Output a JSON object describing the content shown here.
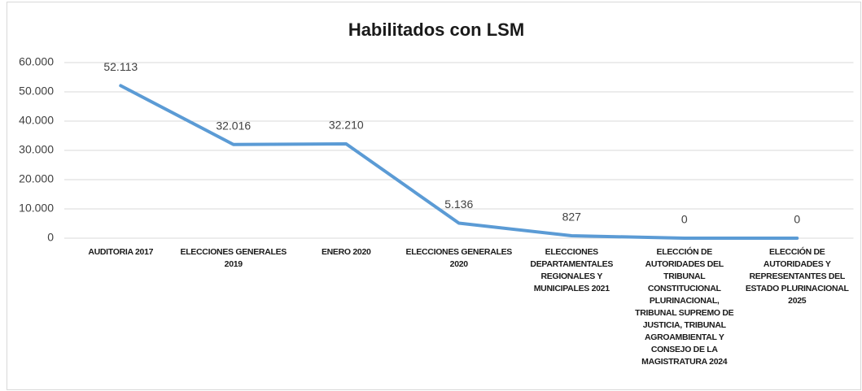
{
  "chart_data": {
    "type": "line",
    "title": "Habilitados con LSM",
    "categories": [
      "AUDITORIA 2017",
      "ELECCIONES GENERALES 2019",
      "ENERO 2020",
      "ELECCIONES GENERALES 2020",
      "ELECCIONES DEPARTAMENTALES REGIONALES Y MUNICIPALES 2021",
      "ELECCIÓN DE AUTORIDADES DEL TRIBUNAL CONSTITUCIONAL PLURINACIONAL, TRIBUNAL SUPREMO DE JUSTICIA, TRIBUNAL AGROAMBIENTAL Y CONSEJO DE LA MAGISTRATURA 2024",
      "ELECCIÓN DE AUTORIDADES Y REPRESENTANTES DEL ESTADO PLURINACIONAL 2025"
    ],
    "values": [
      52113,
      32016,
      32210,
      5136,
      827,
      0,
      0
    ],
    "value_labels": [
      "52.113",
      "32.016",
      "32.210",
      "5.136",
      "827",
      "0",
      "0"
    ],
    "color": "#5b9bd5",
    "ylim": [
      0,
      60000
    ],
    "yticks": [
      0,
      {
        "value": 10000,
        "label": "10.000"
      },
      {
        "value": 20000,
        "label": "20.000"
      },
      {
        "value": 30000,
        "label": "30.000"
      },
      {
        "value": 40000,
        "label": "40.000"
      },
      {
        "value": 50000,
        "label": "50.000"
      },
      {
        "value": 60000,
        "label": "60.000"
      }
    ],
    "grid": true
  }
}
